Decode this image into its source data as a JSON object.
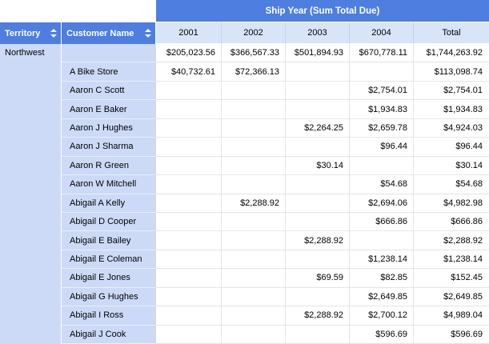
{
  "table": {
    "band_title": "Ship Year (Sum Total Due)",
    "row_headers": [
      {
        "label": "Territory",
        "sort_icon": "sort-updown-icon"
      },
      {
        "label": "Customer Name",
        "sort_icon": "sort-updown-icon"
      }
    ],
    "columns": [
      "2001",
      "2002",
      "2003",
      "2004",
      "Total"
    ],
    "territory": "Northwest",
    "rows": [
      {
        "customer": "",
        "values": [
          "$205,023.56",
          "$366,567.33",
          "$501,894.93",
          "$670,778.11",
          "$1,744,263.92"
        ]
      },
      {
        "customer": "A Bike Store",
        "values": [
          "$40,732.61",
          "$72,366.13",
          "",
          "",
          "$113,098.74"
        ]
      },
      {
        "customer": "Aaron C Scott",
        "values": [
          "",
          "",
          "",
          "$2,754.01",
          "$2,754.01"
        ]
      },
      {
        "customer": "Aaron E Baker",
        "values": [
          "",
          "",
          "",
          "$1,934.83",
          "$1,934.83"
        ]
      },
      {
        "customer": "Aaron J Hughes",
        "values": [
          "",
          "",
          "$2,264.25",
          "$2,659.78",
          "$4,924.03"
        ]
      },
      {
        "customer": "Aaron J Sharma",
        "values": [
          "",
          "",
          "",
          "$96.44",
          "$96.44"
        ]
      },
      {
        "customer": "Aaron R Green",
        "values": [
          "",
          "",
          "$30.14",
          "",
          "$30.14"
        ]
      },
      {
        "customer": "Aaron W Mitchell",
        "values": [
          "",
          "",
          "",
          "$54.68",
          "$54.68"
        ]
      },
      {
        "customer": "Abigail A Kelly",
        "values": [
          "",
          "$2,288.92",
          "",
          "$2,694.06",
          "$4,982.98"
        ]
      },
      {
        "customer": "Abigail D Cooper",
        "values": [
          "",
          "",
          "",
          "$666.86",
          "$666.86"
        ]
      },
      {
        "customer": "Abigail E Bailey",
        "values": [
          "",
          "",
          "$2,288.92",
          "",
          "$2,288.92"
        ]
      },
      {
        "customer": "Abigail E Coleman",
        "values": [
          "",
          "",
          "",
          "$1,238.14",
          "$1,238.14"
        ]
      },
      {
        "customer": "Abigail E Jones",
        "values": [
          "",
          "",
          "$69.59",
          "$82.85",
          "$152.45"
        ]
      },
      {
        "customer": "Abigail G Hughes",
        "values": [
          "",
          "",
          "",
          "$2,649.85",
          "$2,649.85"
        ]
      },
      {
        "customer": "Abigail I Ross",
        "values": [
          "",
          "",
          "$2,288.92",
          "$2,700.12",
          "$4,989.04"
        ]
      },
      {
        "customer": "Abigail J Cook",
        "values": [
          "",
          "",
          "",
          "$596.69",
          "$596.69"
        ]
      }
    ],
    "colors": {
      "header_blue": "#4d7ee0",
      "header_text": "#ffffff",
      "column_header_bg": "#d8e5f8",
      "row_header_bg": "#ccdaf7",
      "grid_line": "#e4e4e4",
      "text": "#000000"
    }
  }
}
